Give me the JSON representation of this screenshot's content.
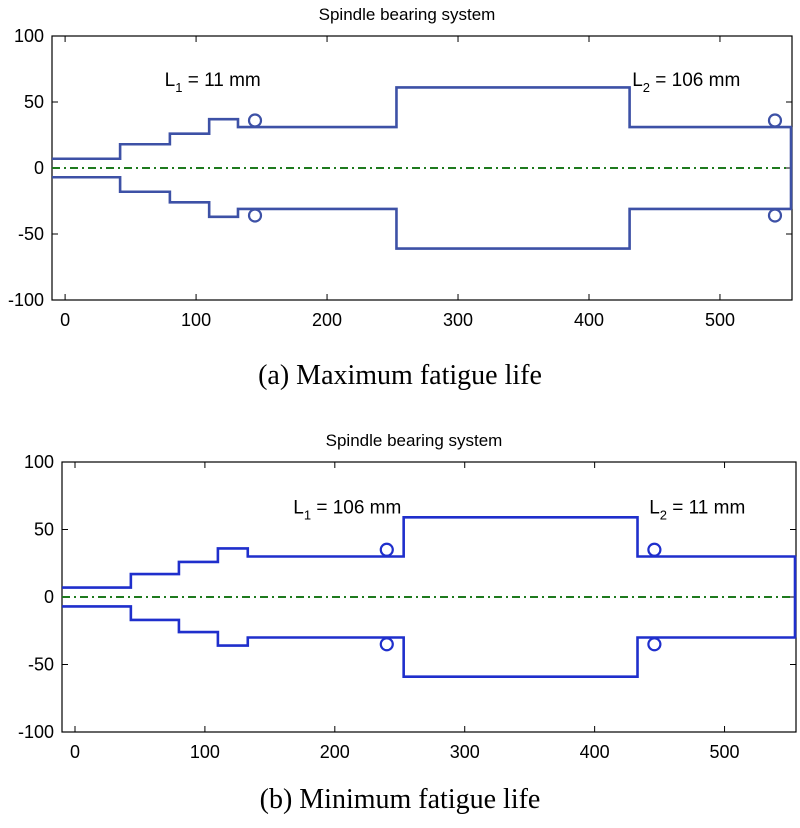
{
  "chart_data": [
    {
      "type": "line",
      "title": "Spindle bearing system",
      "caption": "(a) Maximum fatigue life",
      "xlim": [
        -10,
        555
      ],
      "ylim": [
        -100,
        100
      ],
      "xticks": [
        0,
        100,
        200,
        300,
        400,
        500
      ],
      "yticks": [
        100,
        50,
        0,
        -50,
        -100
      ],
      "profile_x": [
        -10,
        42,
        42,
        80,
        80,
        110,
        110,
        132,
        132,
        142,
        142,
        150,
        150,
        253,
        253,
        431,
        431,
        538,
        538,
        546,
        546,
        555
      ],
      "profile_y": [
        7,
        7,
        18,
        18,
        26,
        26,
        37,
        37,
        31,
        31,
        31,
        31,
        31,
        31,
        61,
        61,
        31,
        31,
        31,
        31,
        31,
        31
      ],
      "bearings_x": [
        145,
        542
      ],
      "bearing_y": 36,
      "end_x": 555,
      "series": [
        {
          "name": "spindle profile",
          "color": "#3d51a6"
        },
        {
          "name": "centerline",
          "color": "#1e7a1e",
          "style": "dash-dot"
        }
      ],
      "annotations": [
        {
          "label": "L",
          "sub": "1",
          "rest": " = 11 mm",
          "x": 76,
          "y": 62
        },
        {
          "label": "L",
          "sub": "2",
          "rest": " = 106 mm",
          "x": 433,
          "y": 62
        }
      ]
    },
    {
      "type": "line",
      "title": "Spindle bearing system",
      "caption": "(b) Minimum fatigue life",
      "xlim": [
        -10,
        555
      ],
      "ylim": [
        -100,
        100
      ],
      "xticks": [
        0,
        100,
        200,
        300,
        400,
        500
      ],
      "yticks": [
        100,
        50,
        0,
        -50,
        -100
      ],
      "profile_x": [
        -10,
        43,
        43,
        80,
        80,
        110,
        110,
        133,
        133,
        235,
        235,
        253,
        253,
        433,
        433,
        440,
        440,
        555
      ],
      "profile_y": [
        7,
        7,
        17,
        17,
        26,
        26,
        36,
        36,
        30,
        30,
        30,
        30,
        59,
        59,
        30,
        30,
        30,
        30
      ],
      "bearings_x": [
        240,
        446
      ],
      "bearing_y": 35,
      "end_x": 555,
      "series": [
        {
          "name": "spindle profile",
          "color": "#1f2fcc"
        },
        {
          "name": "centerline",
          "color": "#1e7a1e",
          "style": "dash-dot"
        }
      ],
      "annotations": [
        {
          "label": "L",
          "sub": "1",
          "rest": " = 106 mm",
          "x": 168,
          "y": 62
        },
        {
          "label": "L",
          "sub": "2",
          "rest": " = 11 mm",
          "x": 442,
          "y": 62
        }
      ]
    }
  ]
}
